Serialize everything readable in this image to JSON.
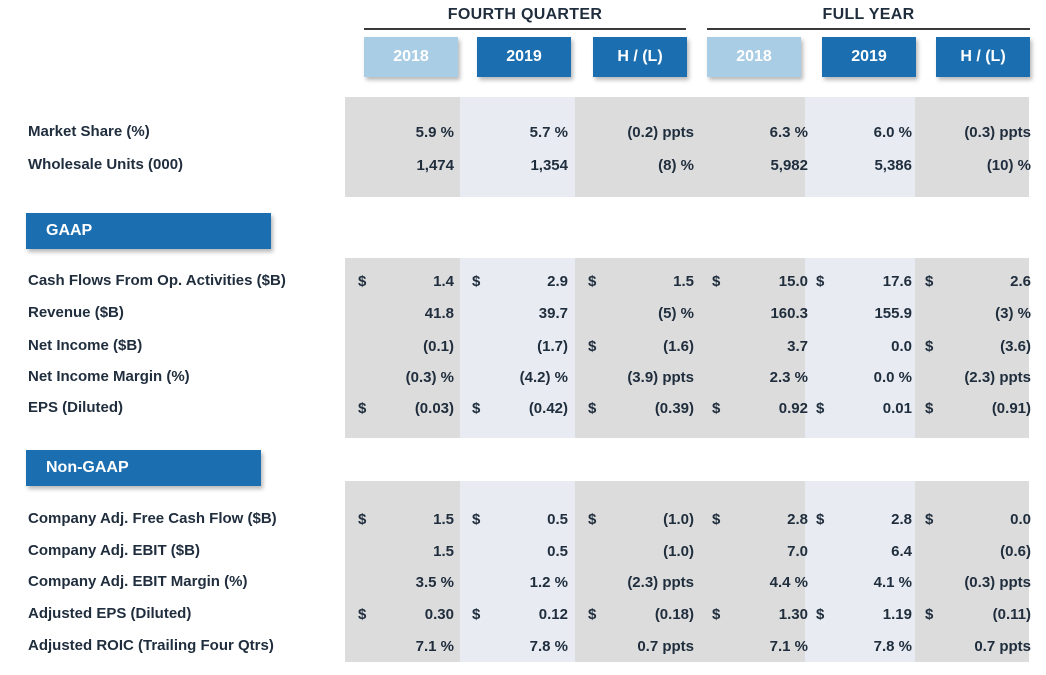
{
  "groups": [
    {
      "title": "FOURTH QUARTER",
      "columns": [
        "2018",
        "2019",
        "H / (L)"
      ]
    },
    {
      "title": "FULL YEAR",
      "columns": [
        "2018",
        "2019",
        "H / (L)"
      ]
    }
  ],
  "sections": [
    {
      "title": "",
      "rows": [
        {
          "label": "Market Share (%)",
          "cells": [
            [
              "",
              "5.9 %"
            ],
            [
              "",
              "5.7 %"
            ],
            [
              "",
              "(0.2) ppts"
            ],
            [
              "",
              "6.3 %"
            ],
            [
              "",
              "6.0 %"
            ],
            [
              "",
              "(0.3) ppts"
            ]
          ]
        },
        {
          "label": "Wholesale Units (000)",
          "cells": [
            [
              "",
              "1,474"
            ],
            [
              "",
              "1,354"
            ],
            [
              "",
              "(8) %"
            ],
            [
              "",
              "5,982"
            ],
            [
              "",
              "5,386"
            ],
            [
              "",
              "(10) %"
            ]
          ]
        }
      ]
    },
    {
      "title": "GAAP",
      "rows": [
        {
          "label": "Cash Flows From Op. Activities ($B)",
          "cells": [
            [
              "$",
              "1.4"
            ],
            [
              "$",
              "2.9"
            ],
            [
              "$",
              "1.5"
            ],
            [
              "$",
              "15.0"
            ],
            [
              "$",
              "17.6"
            ],
            [
              "$",
              "2.6"
            ]
          ]
        },
        {
          "label": "Revenue ($B)",
          "cells": [
            [
              "",
              "41.8"
            ],
            [
              "",
              "39.7"
            ],
            [
              "",
              "(5) %"
            ],
            [
              "",
              "160.3"
            ],
            [
              "",
              "155.9"
            ],
            [
              "",
              "(3) %"
            ]
          ]
        },
        {
          "label": "Net Income ($B)",
          "cells": [
            [
              "",
              "(0.1)"
            ],
            [
              "",
              "(1.7)"
            ],
            [
              "$",
              "(1.6)"
            ],
            [
              "",
              "3.7"
            ],
            [
              "",
              "0.0"
            ],
            [
              "$",
              "(3.6)"
            ]
          ]
        },
        {
          "label": "Net Income Margin (%)",
          "cells": [
            [
              "",
              "(0.3) %"
            ],
            [
              "",
              "(4.2) %"
            ],
            [
              "",
              "(3.9) ppts"
            ],
            [
              "",
              "2.3 %"
            ],
            [
              "",
              "0.0 %"
            ],
            [
              "",
              "(2.3) ppts"
            ]
          ]
        },
        {
          "label": "EPS (Diluted)",
          "cells": [
            [
              "$",
              "(0.03)"
            ],
            [
              "$",
              "(0.42)"
            ],
            [
              "$",
              "(0.39)"
            ],
            [
              "$",
              "0.92"
            ],
            [
              "$",
              "0.01"
            ],
            [
              "$",
              "(0.91)"
            ]
          ]
        }
      ]
    },
    {
      "title": "Non-GAAP",
      "rows": [
        {
          "label": "Company Adj. Free Cash Flow ($B)",
          "cells": [
            [
              "$",
              "1.5"
            ],
            [
              "$",
              "0.5"
            ],
            [
              "$",
              "(1.0)"
            ],
            [
              "$",
              "2.8"
            ],
            [
              "$",
              "2.8"
            ],
            [
              "$",
              "0.0"
            ]
          ]
        },
        {
          "label": "Company Adj. EBIT ($B)",
          "cells": [
            [
              "",
              "1.5"
            ],
            [
              "",
              "0.5"
            ],
            [
              "",
              "(1.0)"
            ],
            [
              "",
              "7.0"
            ],
            [
              "",
              "6.4"
            ],
            [
              "",
              "(0.6)"
            ]
          ]
        },
        {
          "label": "Company Adj. EBIT Margin (%)",
          "cells": [
            [
              "",
              "3.5 %"
            ],
            [
              "",
              "1.2 %"
            ],
            [
              "",
              "(2.3) ppts"
            ],
            [
              "",
              "4.4 %"
            ],
            [
              "",
              "4.1 %"
            ],
            [
              "",
              "(0.3) ppts"
            ]
          ]
        },
        {
          "label": "Adjusted EPS (Diluted)",
          "cells": [
            [
              "$",
              "0.30"
            ],
            [
              "$",
              "0.12"
            ],
            [
              "$",
              "(0.18)"
            ],
            [
              "$",
              "1.30"
            ],
            [
              "$",
              "1.19"
            ],
            [
              "$",
              "(0.11)"
            ]
          ]
        },
        {
          "label": "Adjusted ROIC (Trailing Four Qtrs)",
          "cells": [
            [
              "",
              "7.1 %"
            ],
            [
              "",
              "7.8 %"
            ],
            [
              "",
              "0.7 ppts"
            ],
            [
              "",
              "7.1 %"
            ],
            [
              "",
              "7.8 %"
            ],
            [
              "",
              "0.7 ppts"
            ]
          ]
        }
      ]
    }
  ]
}
